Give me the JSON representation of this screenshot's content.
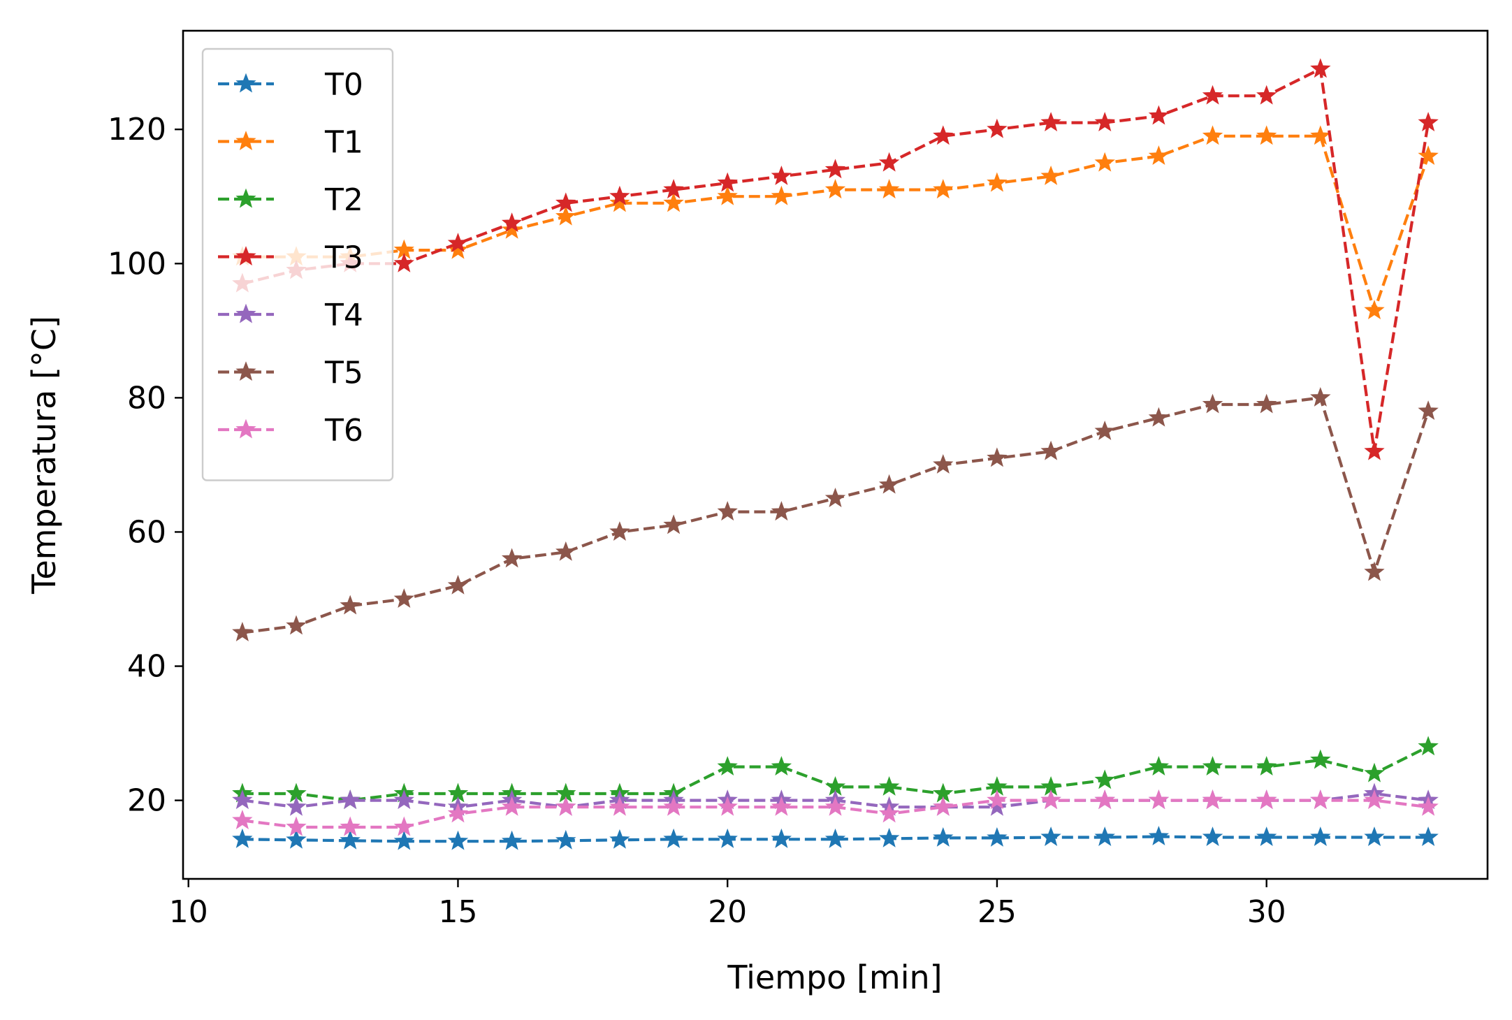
{
  "chart_data": {
    "type": "line",
    "xlabel": "Tiempo [min]",
    "ylabel": "Temperatura [°C]",
    "xlim": [
      9.9,
      34.1
    ],
    "ylim": [
      8.3,
      134.7
    ],
    "xticks": [
      10,
      15,
      20,
      25,
      30
    ],
    "yticks": [
      20,
      40,
      60,
      80,
      100,
      120
    ],
    "grid": false,
    "legend_position": "upper-left",
    "marker": "star",
    "line_style": "dashed",
    "x": [
      11,
      12,
      13,
      14,
      15,
      16,
      17,
      18,
      19,
      20,
      21,
      22,
      23,
      24,
      25,
      26,
      27,
      28,
      29,
      30,
      31,
      32,
      33
    ],
    "series": [
      {
        "name": "T0",
        "color": "#1f77b4",
        "values": [
          14.2,
          14.1,
          14.0,
          13.9,
          13.9,
          13.9,
          14.0,
          14.1,
          14.2,
          14.2,
          14.2,
          14.2,
          14.3,
          14.4,
          14.4,
          14.5,
          14.5,
          14.6,
          14.5,
          14.5,
          14.5,
          14.5,
          14.5
        ]
      },
      {
        "name": "T1",
        "color": "#ff7f0e",
        "values": [
          101,
          101,
          101,
          102,
          102,
          105,
          107,
          109,
          109,
          110,
          110,
          111,
          111,
          111,
          112,
          113,
          115,
          116,
          119,
          119,
          119,
          93,
          116
        ]
      },
      {
        "name": "T2",
        "color": "#2ca02c",
        "values": [
          21,
          21,
          20,
          21,
          21,
          21,
          21,
          21,
          21,
          25,
          25,
          22,
          22,
          21,
          22,
          22,
          23,
          25,
          25,
          25,
          26,
          24,
          28
        ]
      },
      {
        "name": "T3",
        "color": "#d62728",
        "values": [
          97,
          99,
          100,
          100,
          103,
          106,
          109,
          110,
          111,
          112,
          113,
          114,
          115,
          119,
          120,
          121,
          121,
          122,
          125,
          125,
          129,
          72,
          121
        ]
      },
      {
        "name": "T4",
        "color": "#9467bd",
        "values": [
          20,
          19,
          20,
          20,
          19,
          20,
          19,
          20,
          20,
          20,
          20,
          20,
          19,
          19,
          19,
          20,
          20,
          20,
          20,
          20,
          20,
          21,
          20
        ]
      },
      {
        "name": "T5",
        "color": "#8c564b",
        "values": [
          45,
          46,
          49,
          50,
          52,
          56,
          57,
          60,
          61,
          63,
          63,
          65,
          67,
          70,
          71,
          72,
          75,
          77,
          79,
          79,
          80,
          54,
          78
        ]
      },
      {
        "name": "T6",
        "color": "#e377c2",
        "values": [
          17,
          16,
          16,
          16,
          18,
          19,
          19,
          19,
          19,
          19,
          19,
          19,
          18,
          19,
          20,
          20,
          20,
          20,
          20,
          20,
          20,
          20,
          19
        ]
      }
    ]
  }
}
